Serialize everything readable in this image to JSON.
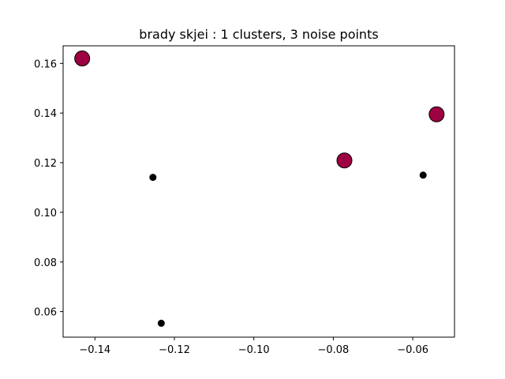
{
  "chart_data": {
    "type": "scatter",
    "title": "brady skjei : 1 clusters, 3 noise points",
    "xlabel": "",
    "ylabel": "",
    "xlim": [
      -0.148,
      -0.0495
    ],
    "ylim": [
      0.0497,
      0.1671
    ],
    "grid": false,
    "xticks": [
      -0.14,
      -0.12,
      -0.1,
      -0.08,
      -0.06
    ],
    "xtick_labels": [
      "−0.14",
      "−0.12",
      "−0.10",
      "−0.08",
      "−0.06"
    ],
    "yticks": [
      0.06,
      0.08,
      0.1,
      0.12,
      0.14,
      0.16
    ],
    "ytick_labels": [
      "0.06",
      "0.08",
      "0.10",
      "0.12",
      "0.14",
      "0.16"
    ],
    "series": [
      {
        "kind": "cluster",
        "color": "#9e0142",
        "edge_color": "#000000",
        "marker": "large-circle",
        "points": [
          {
            "x": -0.1432,
            "y": 0.162
          },
          {
            "x": -0.0772,
            "y": 0.1209
          },
          {
            "x": -0.054,
            "y": 0.1395
          }
        ]
      },
      {
        "kind": "noise",
        "color": "#000000",
        "edge_color": "#000000",
        "marker": "small-circle",
        "points": [
          {
            "x": -0.1254,
            "y": 0.1141
          },
          {
            "x": -0.1233,
            "y": 0.0553
          },
          {
            "x": -0.0574,
            "y": 0.115
          }
        ]
      }
    ]
  }
}
